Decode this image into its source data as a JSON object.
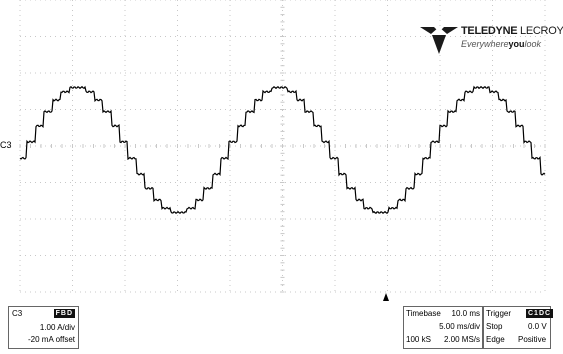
{
  "channel_marker": "C3",
  "logo": {
    "brand_bold": "TELEDYNE",
    "brand_light": "LECROY",
    "tagline_pre": "Everywhere",
    "tagline_bold": "you",
    "tagline_post": "look"
  },
  "channel_box": {
    "name": "C3",
    "badge": "FBD",
    "scale": "1.00 A/div",
    "offset": "-20 mA offset"
  },
  "timebase_box": {
    "label": "Timebase",
    "delay": "10.0 ms",
    "per_div": "5.00 ms/div",
    "samples": "100 kS",
    "rate": "2.00 MS/s"
  },
  "trigger_box": {
    "label": "Trigger",
    "badge": "C1DC",
    "mode": "Stop",
    "level": "0.0 V",
    "type": "Edge",
    "slope": "Positive"
  },
  "colors": {
    "grid": "#c8c8c8",
    "trace": "#000000"
  }
}
